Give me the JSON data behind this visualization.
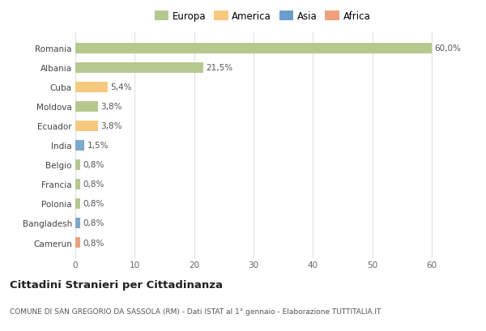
{
  "categories": [
    "Romania",
    "Albania",
    "Cuba",
    "Moldova",
    "Ecuador",
    "India",
    "Belgio",
    "Francia",
    "Polonia",
    "Bangladesh",
    "Camerun"
  ],
  "values": [
    60.0,
    21.5,
    5.4,
    3.8,
    3.8,
    1.5,
    0.8,
    0.8,
    0.8,
    0.8,
    0.8
  ],
  "labels": [
    "60,0%",
    "21,5%",
    "5,4%",
    "3,8%",
    "3,8%",
    "1,5%",
    "0,8%",
    "0,8%",
    "0,8%",
    "0,8%",
    "0,8%"
  ],
  "colors": [
    "#b5c98e",
    "#b5c98e",
    "#f7c97e",
    "#b5c98e",
    "#f7c97e",
    "#7aaacf",
    "#b5c98e",
    "#b5c98e",
    "#b5c98e",
    "#7aaacf",
    "#f0a07a"
  ],
  "legend_labels": [
    "Europa",
    "America",
    "Asia",
    "Africa"
  ],
  "legend_colors": [
    "#b5c98e",
    "#f7c97e",
    "#6a9ecf",
    "#f0a07a"
  ],
  "title": "Cittadini Stranieri per Cittadinanza",
  "subtitle": "COMUNE DI SAN GREGORIO DA SASSOLA (RM) - Dati ISTAT al 1° gennaio - Elaborazione TUTTITALIA.IT",
  "xlim": [
    0,
    63
  ],
  "xticks": [
    0,
    10,
    20,
    30,
    40,
    50,
    60
  ],
  "background_color": "#ffffff",
  "grid_color": "#e0e0e0",
  "bar_height": 0.55
}
